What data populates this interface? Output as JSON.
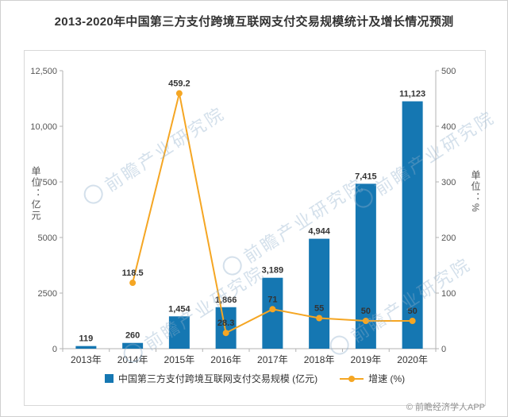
{
  "title": "2013-2020年中国第三方支付跨境互联网支付交易规模统计及增长情况预测",
  "copyright": "© 前瞻经济学人APP",
  "watermark": "前瞻产业研究院",
  "chart_data": {
    "type": "bar",
    "subtype": "bar+line combo, dual y-axis",
    "categories": [
      "2013年",
      "2014年",
      "2015年",
      "2016年",
      "2017年",
      "2018年",
      "2019年",
      "2020年"
    ],
    "bar_series": {
      "name": "中国第三方支付跨境互联网支付交易规模 (亿元)",
      "axis": "left",
      "color": "#1577b2",
      "values": [
        119,
        260,
        1454,
        1866,
        3189,
        4944,
        7415,
        11123
      ],
      "labels": [
        "119",
        "260",
        "1,454",
        "1,866",
        "3,189",
        "4,944",
        "7,415",
        "11,123"
      ]
    },
    "line_series": {
      "name": "增速 (%)",
      "axis": "right",
      "color": "#f5a623",
      "values": [
        null,
        118.5,
        459.2,
        28.3,
        71,
        55,
        50,
        50
      ],
      "labels": [
        "",
        "118.5",
        "459.2",
        "28.3",
        "71",
        "55",
        "50",
        "50"
      ]
    },
    "left_axis": {
      "title": "单位：亿元",
      "max": 12500,
      "min": 0,
      "ticks": [
        {
          "label": "0",
          "value": 0
        },
        {
          "label": "2500",
          "value": 2500
        },
        {
          "label": "5000",
          "value": 5000
        },
        {
          "label": "7500",
          "value": 7500
        },
        {
          "label": "10,000",
          "value": 10000
        },
        {
          "label": "12,500",
          "value": 12500
        }
      ]
    },
    "right_axis": {
      "title": "单位：%",
      "max": 500,
      "min": 0,
      "ticks": [
        {
          "label": "0",
          "value": 0
        },
        {
          "label": "100",
          "value": 100
        },
        {
          "label": "200",
          "value": 200
        },
        {
          "label": "300",
          "value": 300
        },
        {
          "label": "400",
          "value": 400
        },
        {
          "label": "500",
          "value": 500
        }
      ]
    },
    "legend_position": "bottom",
    "grid": false
  }
}
